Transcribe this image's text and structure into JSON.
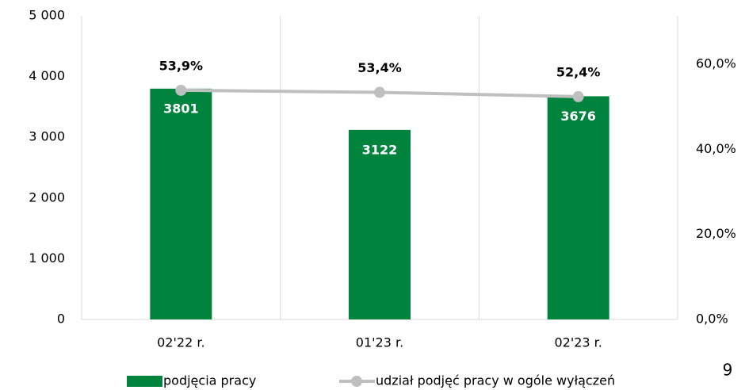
{
  "chart_data": {
    "type": "bar_line",
    "categories": [
      "02'22 r.",
      "01'23 r.",
      "02'23 r."
    ],
    "series": [
      {
        "name": "podjęcia pracy",
        "type": "bar",
        "color": "#00843d",
        "values": [
          3801,
          3122,
          3676
        ]
      },
      {
        "name": "udział podjęć pracy w ogóle wyłączeń",
        "type": "line",
        "axis": "y2",
        "color": "#bfbfbf",
        "values": [
          53.9,
          53.4,
          52.4
        ],
        "value_labels": [
          "53,9%",
          "53,4%",
          "52,4%"
        ]
      }
    ],
    "ylim": [
      0,
      5000
    ],
    "yticks": [
      0,
      {
        "value": 1000,
        "label": "1 000"
      },
      {
        "value": 2000,
        "label": "2 000"
      },
      {
        "value": 3000,
        "label": "3 000"
      },
      {
        "value": 4000,
        "label": "4 000"
      },
      {
        "value": 5000,
        "label": "5 000"
      }
    ],
    "y2lim": [
      0,
      71.4
    ],
    "y2ticks": [
      {
        "value": 0,
        "label": "0,0%"
      },
      {
        "value": 20,
        "label": "20,0%"
      },
      {
        "value": 40,
        "label": "40,0%"
      },
      {
        "value": 60,
        "label": "60,0%"
      }
    ],
    "category_separators": true,
    "legend": "bottom"
  },
  "page_number": "9"
}
